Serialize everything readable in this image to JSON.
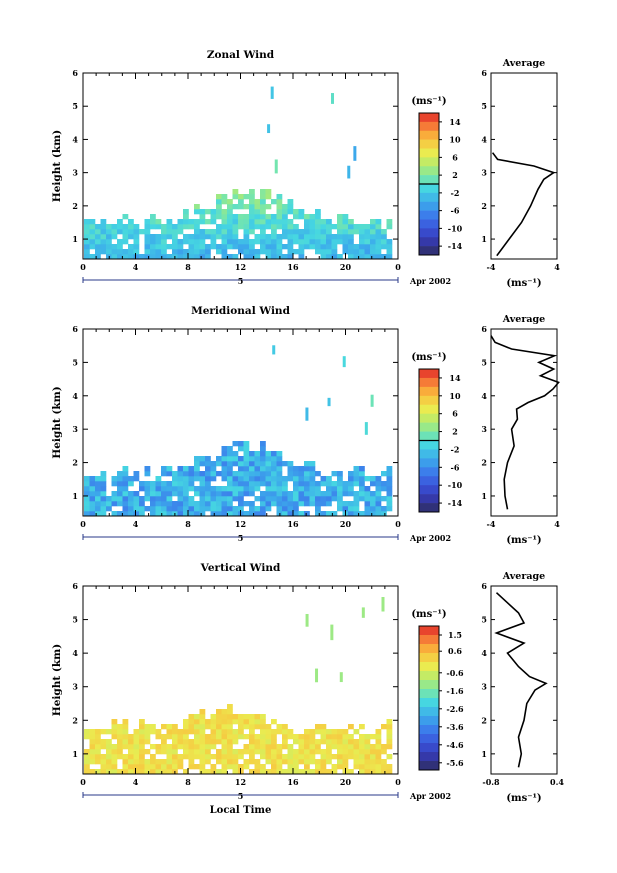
{
  "chart_data": [
    {
      "type": "heatmap",
      "title": "Zonal Wind",
      "ylabel": "Height (km)",
      "xlabel": "",
      "x_ticks": [
        "0",
        "4",
        "8",
        "12",
        "16",
        "20",
        "0"
      ],
      "y_ticks": [
        "1",
        "2",
        "3",
        "4",
        "5",
        "6"
      ],
      "xlim": [
        0,
        24
      ],
      "ylim": [
        0.4,
        6
      ],
      "date_label": "Apr 2002",
      "day_label": "5",
      "colorbar": {
        "unit": "(ms⁻¹)",
        "ticks": [
          "14",
          "10",
          "6",
          "2",
          "-2",
          "-6",
          "-10",
          "-14"
        ],
        "range": [
          -16,
          16
        ],
        "mark": "0"
      },
      "average": {
        "title": "Average",
        "xlabel": "(ms⁻¹)",
        "x_ticks": [
          "-4",
          "4"
        ],
        "y_ticks": [
          "1",
          "2",
          "3",
          "4",
          "5",
          "6"
        ],
        "xlim": [
          -4,
          4
        ],
        "height": [
          0.5,
          1.0,
          1.5,
          2.0,
          2.5,
          2.8,
          3.0,
          3.2,
          3.4,
          3.6
        ],
        "value": [
          -3.3,
          -1.8,
          -0.3,
          0.8,
          1.7,
          2.4,
          3.6,
          1.2,
          -3.2,
          -3.8
        ]
      }
    },
    {
      "type": "heatmap",
      "title": "Meridional Wind",
      "ylabel": "Height (km)",
      "xlabel": "",
      "x_ticks": [
        "0",
        "4",
        "8",
        "12",
        "16",
        "20",
        "0"
      ],
      "y_ticks": [
        "1",
        "2",
        "3",
        "4",
        "5",
        "6"
      ],
      "xlim": [
        0,
        24
      ],
      "ylim": [
        0.4,
        6
      ],
      "date_label": "Apr 2002",
      "day_label": "5",
      "colorbar": {
        "unit": "(ms⁻¹)",
        "ticks": [
          "14",
          "10",
          "6",
          "2",
          "-2",
          "-6",
          "-10",
          "-14"
        ],
        "range": [
          -16,
          16
        ],
        "mark": "0"
      },
      "average": {
        "title": "Average",
        "xlabel": "(ms⁻¹)",
        "x_ticks": [
          "-4",
          "4"
        ],
        "y_ticks": [
          "1",
          "2",
          "3",
          "4",
          "5",
          "6"
        ],
        "xlim": [
          -4,
          4
        ],
        "height": [
          0.6,
          1.0,
          1.5,
          2.0,
          2.5,
          3.0,
          3.3,
          3.6,
          3.8,
          4.0,
          4.2,
          4.4,
          4.6,
          4.8,
          5.0,
          5.2,
          5.4,
          5.6,
          5.8
        ],
        "value": [
          -2.0,
          -2.3,
          -2.4,
          -2.0,
          -1.2,
          -1.5,
          -0.8,
          -0.9,
          0.5,
          2.5,
          3.5,
          4.2,
          2.0,
          3.6,
          1.8,
          3.7,
          -1.5,
          -3.5,
          -4.0
        ]
      }
    },
    {
      "type": "heatmap",
      "title": "Vertical Wind",
      "ylabel": "Height (km)",
      "xlabel": "Local Time",
      "x_ticks": [
        "0",
        "4",
        "8",
        "12",
        "16",
        "20",
        "0"
      ],
      "y_ticks": [
        "1",
        "2",
        "3",
        "4",
        "5",
        "6"
      ],
      "xlim": [
        0,
        24
      ],
      "ylim": [
        0.4,
        6
      ],
      "date_label": "Apr 2002",
      "day_label": "5",
      "colorbar": {
        "unit": "(ms⁻¹)",
        "ticks": [
          "1.5",
          "0.6",
          "-0.6",
          "-1.6",
          "-2.6",
          "-3.6",
          "-4.6",
          "-5.6"
        ],
        "range": [
          -6.0,
          2.0
        ],
        "mark": null
      },
      "average": {
        "title": "Average",
        "xlabel": "(ms⁻¹)",
        "x_ticks": [
          "-0.8",
          "0.4"
        ],
        "y_ticks": [
          "1",
          "2",
          "3",
          "4",
          "5",
          "6"
        ],
        "xlim": [
          -0.8,
          0.4
        ],
        "height": [
          0.6,
          1.0,
          1.5,
          2.0,
          2.5,
          2.9,
          3.1,
          3.3,
          3.6,
          4.0,
          4.3,
          4.6,
          4.9,
          5.2,
          5.5,
          5.8
        ],
        "value": [
          -0.3,
          -0.25,
          -0.3,
          -0.2,
          -0.15,
          0.0,
          0.2,
          -0.1,
          -0.3,
          -0.5,
          -0.2,
          -0.7,
          -0.2,
          -0.3,
          -0.5,
          -0.7
        ]
      }
    }
  ]
}
